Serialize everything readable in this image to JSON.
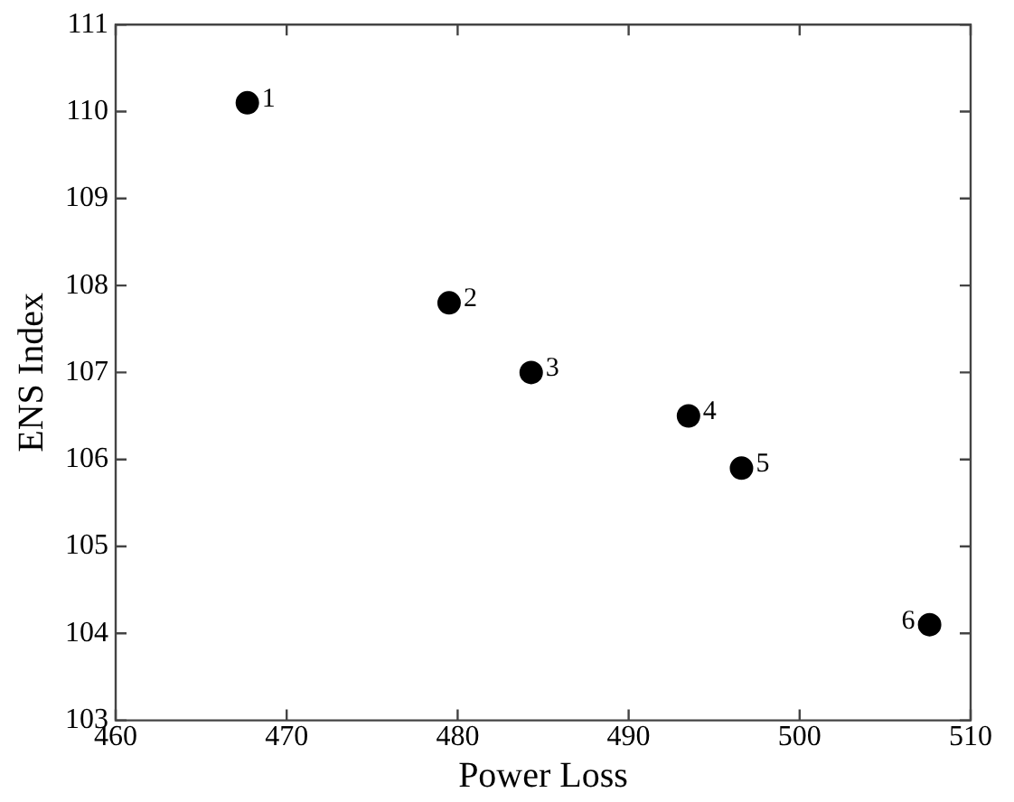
{
  "chart_data": {
    "type": "scatter",
    "xlabel": "Power Loss",
    "ylabel": "ENS Index",
    "x": [
      467.7,
      479.5,
      484.3,
      493.5,
      496.6,
      507.6
    ],
    "values": [
      110.1,
      107.8,
      107.0,
      106.5,
      105.9,
      104.1
    ],
    "color": "#000000",
    "marker": "circle",
    "xlim": [
      460,
      510
    ],
    "xticks": [
      460,
      470,
      480,
      490,
      500,
      510
    ],
    "ylim": [
      103,
      111
    ],
    "yticks": [
      103,
      104,
      105,
      106,
      107,
      108,
      109,
      110,
      111
    ],
    "grid": false,
    "legend": false,
    "annotations": [
      {
        "text": "1",
        "x": 467.7,
        "y": 110.1
      },
      {
        "text": "2",
        "x": 479.5,
        "y": 107.8
      },
      {
        "text": "3",
        "x": 484.3,
        "y": 107.0
      },
      {
        "text": "4",
        "x": 493.5,
        "y": 106.5
      },
      {
        "text": "5",
        "x": 496.6,
        "y": 105.9
      },
      {
        "text": "6",
        "x": 507.6,
        "y": 104.1
      }
    ]
  }
}
